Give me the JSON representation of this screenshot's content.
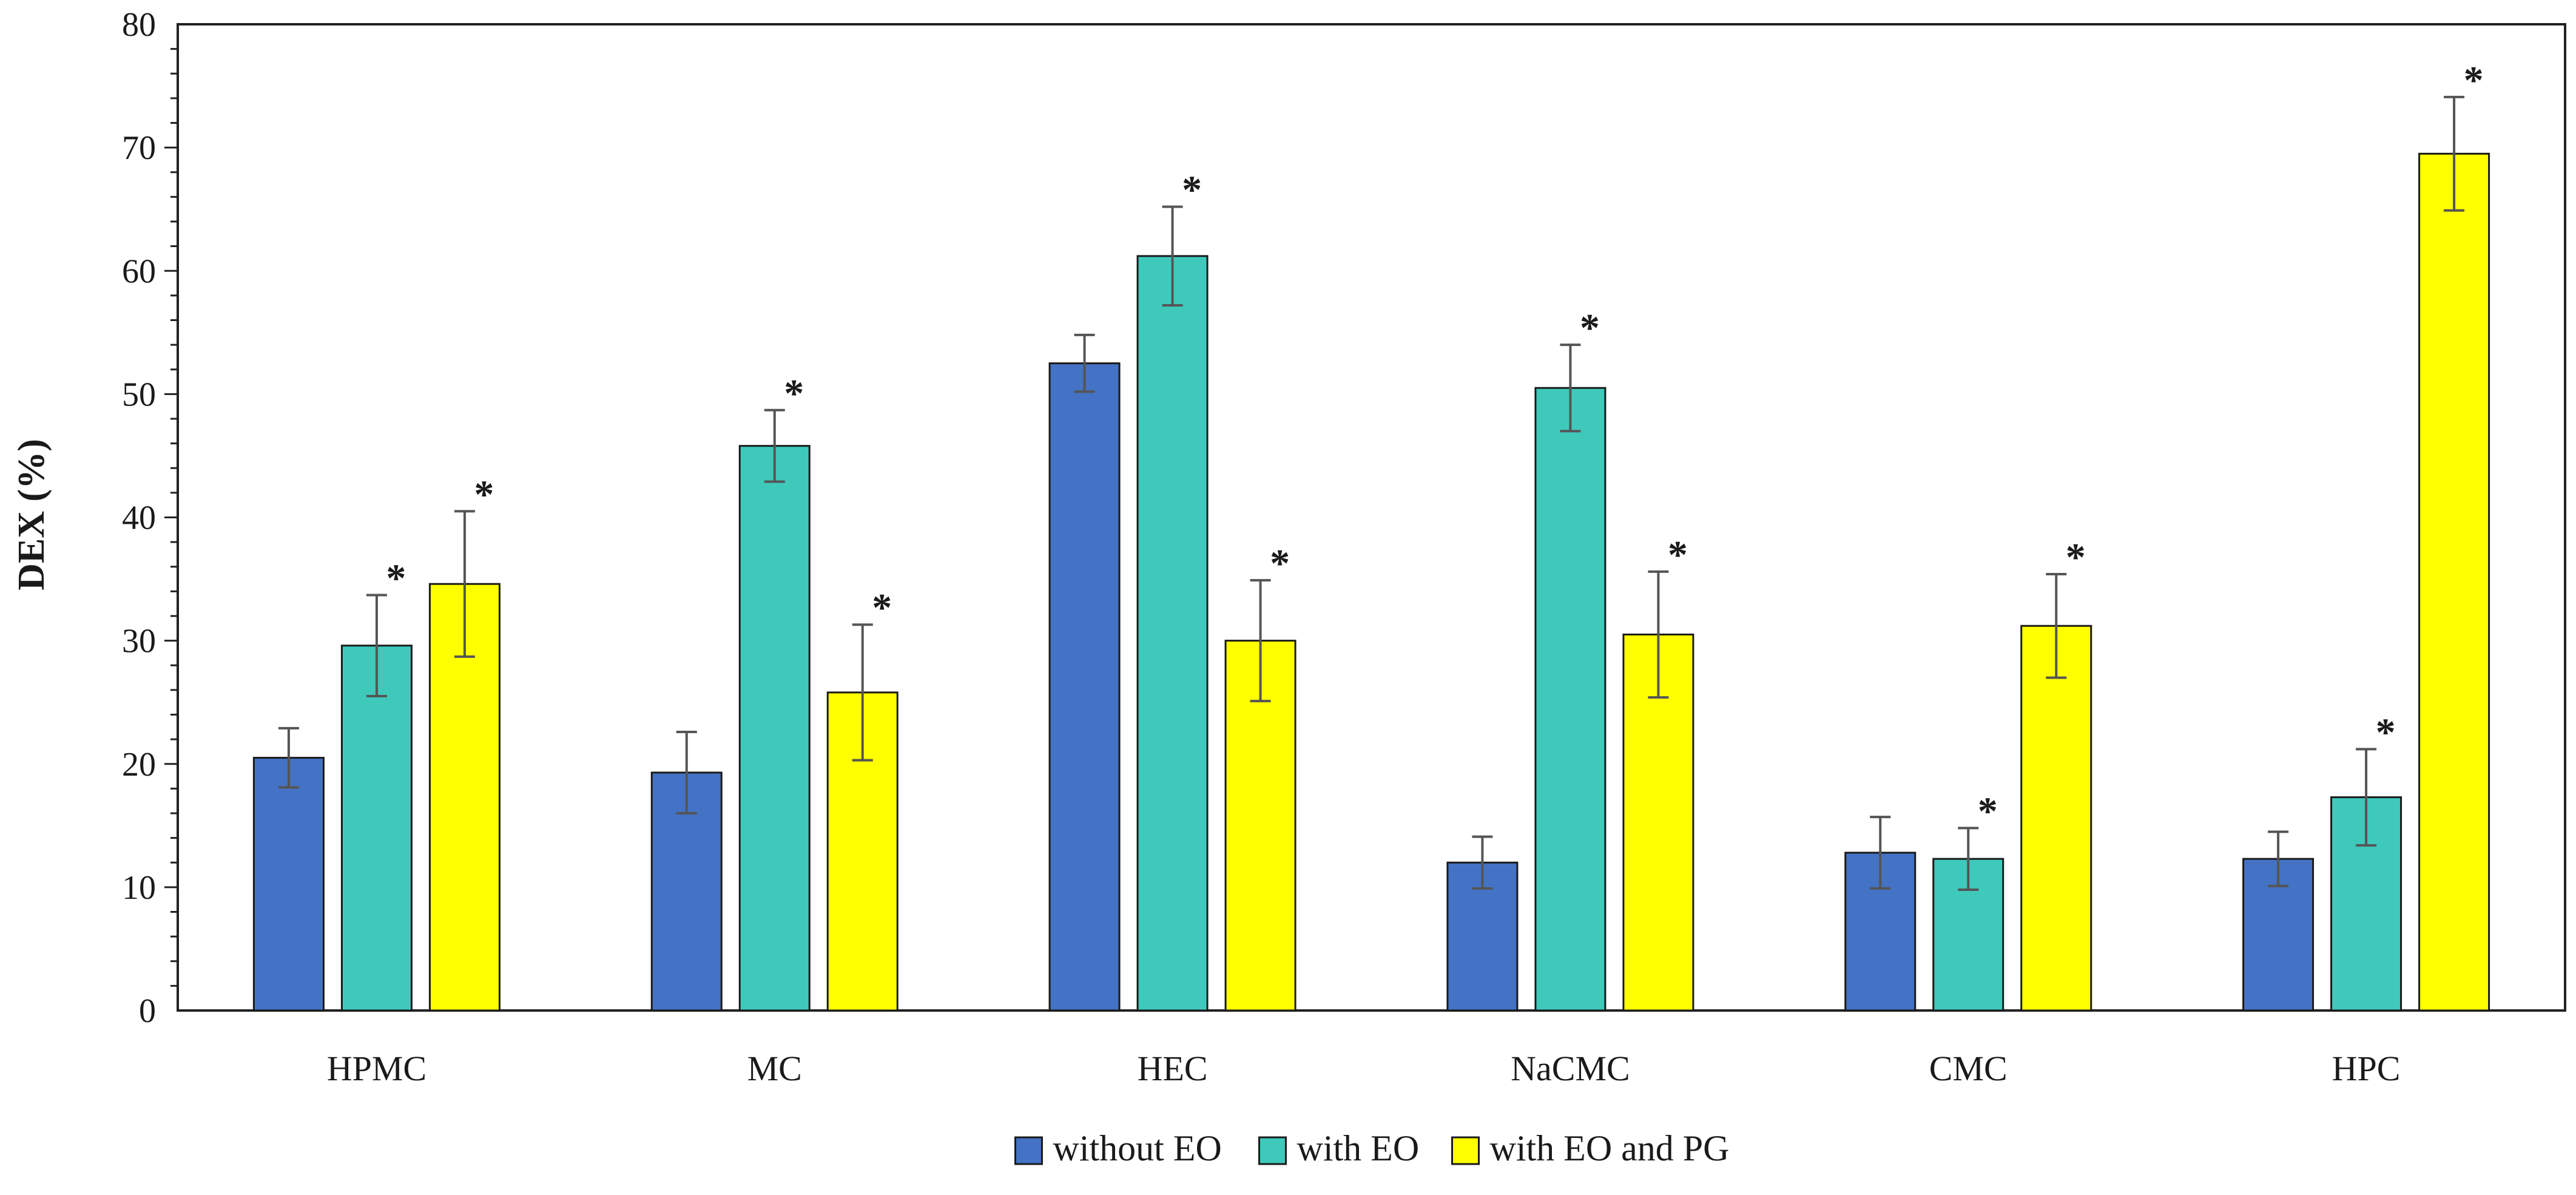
{
  "chart_data": {
    "type": "bar",
    "title": "",
    "xlabel": "",
    "ylabel": "DEX (%)",
    "ylim": [
      0,
      80
    ],
    "yticks": [
      0,
      10,
      20,
      30,
      40,
      50,
      60,
      70,
      80
    ],
    "categories": [
      "HPMC",
      "MC",
      "HEC",
      "NaCMC",
      "CMC",
      "HPC"
    ],
    "series": [
      {
        "name": "without EO",
        "color": "#4472C4",
        "values": [
          20.5,
          19.3,
          52.5,
          12.0,
          12.8,
          12.3
        ],
        "errors": [
          2.4,
          3.3,
          2.3,
          2.1,
          2.9,
          2.2
        ],
        "significant": [
          false,
          false,
          false,
          false,
          false,
          false
        ]
      },
      {
        "name": "with EO",
        "color": "#3EC9BB",
        "values": [
          29.6,
          45.8,
          61.2,
          50.5,
          12.3,
          17.3
        ],
        "errors": [
          4.1,
          2.9,
          4.0,
          3.5,
          2.5,
          3.9
        ],
        "significant": [
          true,
          true,
          true,
          true,
          true,
          true
        ]
      },
      {
        "name": "with EO and PG",
        "color": "#FFFF00",
        "values": [
          34.6,
          25.8,
          30.0,
          30.5,
          31.2,
          69.5
        ],
        "errors": [
          5.9,
          5.5,
          4.9,
          5.1,
          4.2,
          4.6
        ],
        "significant": [
          true,
          true,
          true,
          true,
          true,
          true
        ]
      }
    ],
    "significance_marker": "*",
    "legend_position": "bottom-center"
  }
}
